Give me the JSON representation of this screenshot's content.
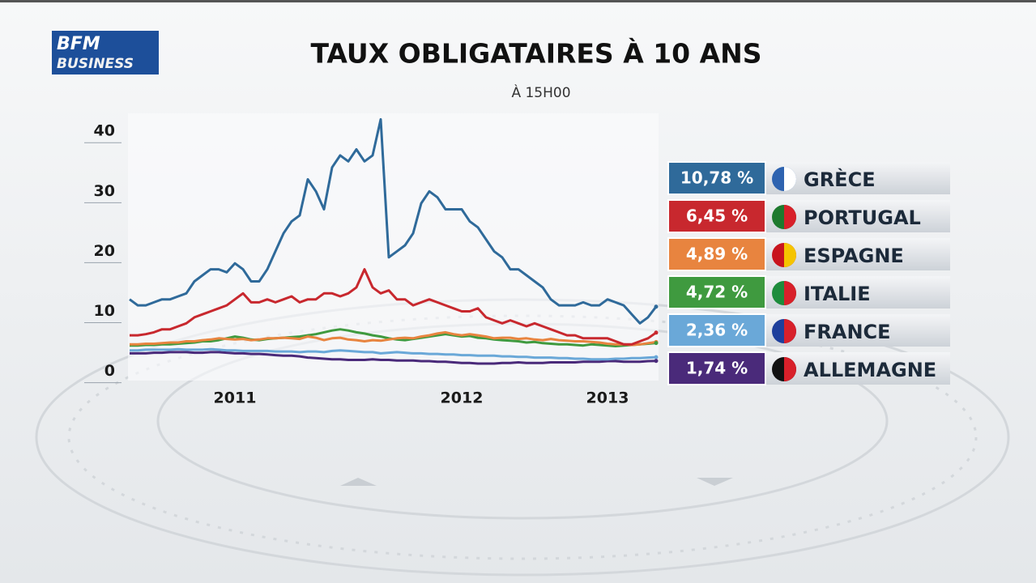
{
  "brand": {
    "line1": "BFM",
    "line2": "BUSINESS"
  },
  "chart_data": {
    "type": "line",
    "title": "TAUX OBLIGATAIRES À 10 ANS",
    "subtitle": "À 15H00",
    "categories": [
      null,
      null,
      null,
      null,
      null,
      null,
      null,
      null,
      null,
      null,
      null,
      null,
      null,
      "2011",
      null,
      null,
      null,
      null,
      null,
      null,
      null,
      null,
      null,
      null,
      null,
      null,
      null,
      null,
      null,
      null,
      null,
      null,
      null,
      null,
      null,
      null,
      null,
      null,
      null,
      null,
      null,
      "2012",
      null,
      null,
      null,
      null,
      null,
      null,
      null,
      null,
      null,
      null,
      null,
      null,
      null,
      null,
      null,
      null,
      null,
      "2013",
      null,
      null,
      null,
      null,
      null,
      null
    ],
    "ylim": [
      -1,
      43
    ],
    "yticks": [
      0,
      10,
      20,
      30,
      40
    ],
    "grid": false,
    "series": [
      {
        "name": "GRÈCE",
        "color": "#2f6a9a",
        "latest": {
          "value": 10.78,
          "label": "10,78 %"
        },
        "values": [
          12,
          11,
          11,
          11.5,
          12,
          12,
          12.5,
          13,
          15,
          16,
          17,
          17,
          16.5,
          18,
          17,
          15,
          15,
          17,
          20,
          23,
          25,
          26,
          32,
          30,
          27,
          34,
          36,
          35,
          37,
          35,
          36,
          42,
          19,
          20,
          21,
          23,
          28,
          30,
          29,
          27,
          27,
          27,
          25,
          24,
          22,
          20,
          19,
          17,
          17,
          16,
          15,
          14,
          12,
          11,
          11,
          11,
          11.5,
          11,
          11,
          12,
          11.5,
          11,
          9.5,
          8,
          9,
          10.78
        ]
      },
      {
        "name": "PORTUGAL",
        "color": "#c8282e",
        "latest": {
          "value": 6.45,
          "label": "6,45 %"
        },
        "values": [
          6,
          6,
          6.2,
          6.5,
          7,
          7,
          7.5,
          8,
          9,
          9.5,
          10,
          10.5,
          11,
          12,
          13,
          11.5,
          11.5,
          12,
          11.5,
          12,
          12.5,
          11.5,
          12,
          12,
          13,
          13,
          12.5,
          13,
          14,
          17,
          14,
          13,
          13.5,
          12,
          12,
          11,
          11.5,
          12,
          11.5,
          11,
          10.5,
          10,
          10,
          10.5,
          9,
          8.5,
          8,
          8.5,
          8,
          7.5,
          8,
          7.5,
          7,
          6.5,
          6,
          6,
          5.5,
          5.5,
          5.5,
          5.5,
          5,
          4.5,
          4.5,
          5,
          5.5,
          6.45
        ]
      },
      {
        "name": "ESPAGNE",
        "color": "#e8843f",
        "latest": {
          "value": 4.89,
          "label": "4,89 %"
        },
        "values": [
          4.5,
          4.5,
          4.6,
          4.6,
          4.7,
          4.8,
          4.8,
          5,
          5,
          5.2,
          5.3,
          5.5,
          5.4,
          5.3,
          5.4,
          5.2,
          5.3,
          5.5,
          5.5,
          5.6,
          5.5,
          5.4,
          5.8,
          5.6,
          5.2,
          5.5,
          5.6,
          5.3,
          5.2,
          5,
          5.2,
          5.1,
          5.3,
          5.5,
          5.6,
          5.5,
          5.8,
          6,
          6.3,
          6.5,
          6.2,
          6,
          6.2,
          6,
          5.8,
          5.5,
          5.6,
          5.6,
          5.4,
          5.5,
          5.3,
          5.2,
          5.4,
          5.2,
          5.1,
          5,
          5,
          4.9,
          4.8,
          4.6,
          4.5,
          4.5,
          4.4,
          4.5,
          4.7,
          4.89
        ]
      },
      {
        "name": "ITALIE",
        "color": "#3f9a3f",
        "latest": {
          "value": 4.72,
          "label": "4,72 %"
        },
        "values": [
          4.3,
          4.3,
          4.4,
          4.4,
          4.5,
          4.5,
          4.6,
          4.7,
          4.8,
          5,
          5,
          5.2,
          5.5,
          5.8,
          5.6,
          5.3,
          5.2,
          5.4,
          5.5,
          5.6,
          5.7,
          5.8,
          6,
          6.2,
          6.5,
          6.8,
          7,
          6.8,
          6.5,
          6.3,
          6,
          5.8,
          5.5,
          5.3,
          5.2,
          5.4,
          5.6,
          5.8,
          6,
          6.2,
          6,
          5.8,
          5.9,
          5.6,
          5.5,
          5.3,
          5.2,
          5.1,
          5,
          4.8,
          4.9,
          4.7,
          4.6,
          4.5,
          4.5,
          4.4,
          4.3,
          4.5,
          4.4,
          4.3,
          4.2,
          4.3,
          4.4,
          4.5,
          4.6,
          4.72
        ]
      },
      {
        "name": "FRANCE",
        "color": "#6aa8d8",
        "latest": {
          "value": 2.36,
          "label": "2,36 %"
        },
        "values": [
          3.5,
          3.5,
          3.6,
          3.6,
          3.6,
          3.6,
          3.7,
          3.6,
          3.6,
          3.6,
          3.7,
          3.6,
          3.5,
          3.5,
          3.4,
          3.4,
          3.4,
          3.4,
          3.3,
          3.3,
          3.3,
          3.2,
          3.3,
          3.3,
          3.2,
          3.4,
          3.5,
          3.4,
          3.3,
          3.2,
          3.2,
          3,
          3.1,
          3.2,
          3.1,
          3,
          3,
          2.9,
          2.9,
          2.8,
          2.8,
          2.7,
          2.7,
          2.6,
          2.6,
          2.6,
          2.5,
          2.5,
          2.4,
          2.4,
          2.3,
          2.3,
          2.3,
          2.2,
          2.2,
          2.1,
          2.1,
          2,
          2,
          2,
          2.1,
          2.1,
          2.2,
          2.2,
          2.3,
          2.36
        ]
      },
      {
        "name": "ALLEMAGNE",
        "color": "#4a2a7a",
        "latest": {
          "value": 1.74,
          "label": "1,74 %"
        },
        "values": [
          3,
          3,
          3,
          3.1,
          3.1,
          3.2,
          3.2,
          3.2,
          3.1,
          3.1,
          3.2,
          3.2,
          3.1,
          3,
          3,
          2.9,
          2.9,
          2.8,
          2.7,
          2.6,
          2.6,
          2.5,
          2.3,
          2.2,
          2.1,
          2,
          2,
          1.9,
          1.9,
          1.9,
          2,
          1.9,
          1.9,
          1.8,
          1.8,
          1.8,
          1.7,
          1.7,
          1.6,
          1.6,
          1.5,
          1.4,
          1.4,
          1.3,
          1.3,
          1.3,
          1.4,
          1.4,
          1.5,
          1.4,
          1.4,
          1.4,
          1.5,
          1.5,
          1.5,
          1.5,
          1.6,
          1.6,
          1.6,
          1.7,
          1.7,
          1.6,
          1.6,
          1.6,
          1.7,
          1.74
        ]
      }
    ]
  }
}
